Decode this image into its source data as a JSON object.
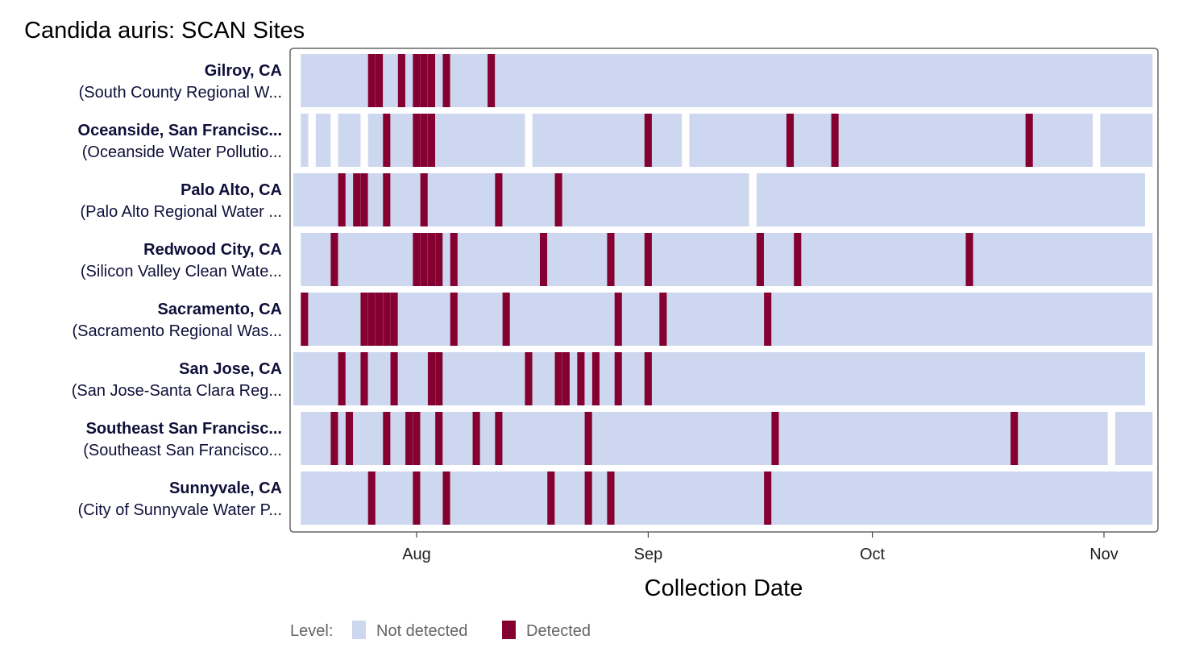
{
  "title": "Candida auris: SCAN Sites",
  "colors": {
    "not_detected": "#cdd7ef",
    "detected": "#850030",
    "frame": "#666666"
  },
  "chart_data": {
    "type": "heatmap",
    "title": "Candida auris: SCAN Sites",
    "xlabel": "Collection Date",
    "x_domain": [
      "2023-07-17",
      "2023-11-08"
    ],
    "x_ticks": [
      {
        "date": "2023-08-01",
        "label": "Aug"
      },
      {
        "date": "2023-09-01",
        "label": "Sep"
      },
      {
        "date": "2023-10-01",
        "label": "Oct"
      },
      {
        "date": "2023-11-01",
        "label": "Nov"
      }
    ],
    "legend": {
      "title": "Level:",
      "position": "bottom",
      "entries": [
        {
          "label": "Not detected",
          "color": "#cdd7ef"
        },
        {
          "label": "Detected",
          "color": "#850030"
        }
      ]
    },
    "sites": [
      {
        "name": "Gilroy, CA",
        "facility": "(South County Regional W...",
        "coverage": [
          [
            "2023-07-17",
            "2023-11-07"
          ]
        ],
        "detected": [
          "2023-07-26",
          "2023-07-27",
          "2023-07-30",
          "2023-08-01",
          "2023-08-02",
          "2023-08-03",
          "2023-08-05",
          "2023-08-11"
        ]
      },
      {
        "name": "Oceanside, San Francisc...",
        "facility": "(Oceanside Water Pollutio...",
        "coverage": [
          [
            "2023-07-17",
            "2023-07-17"
          ],
          [
            "2023-07-19",
            "2023-07-20"
          ],
          [
            "2023-07-22",
            "2023-07-24"
          ],
          [
            "2023-07-26",
            "2023-08-15"
          ],
          [
            "2023-08-17",
            "2023-09-05"
          ],
          [
            "2023-09-07",
            "2023-10-30"
          ],
          [
            "2023-11-01",
            "2023-11-07"
          ]
        ],
        "detected": [
          "2023-07-28",
          "2023-08-01",
          "2023-08-02",
          "2023-08-03",
          "2023-09-01",
          "2023-09-20",
          "2023-09-26",
          "2023-10-22"
        ]
      },
      {
        "name": "Palo Alto, CA",
        "facility": "(Palo Alto Regional Water ...",
        "coverage": [
          [
            "2023-07-16",
            "2023-09-14"
          ],
          [
            "2023-09-16",
            "2023-11-06"
          ]
        ],
        "detected": [
          "2023-07-22",
          "2023-07-24",
          "2023-07-25",
          "2023-07-28",
          "2023-08-02",
          "2023-08-12",
          "2023-08-20"
        ]
      },
      {
        "name": "Redwood City, CA",
        "facility": "(Silicon Valley Clean Wate...",
        "coverage": [
          [
            "2023-07-17",
            "2023-11-07"
          ]
        ],
        "detected": [
          "2023-07-21",
          "2023-08-01",
          "2023-08-02",
          "2023-08-03",
          "2023-08-04",
          "2023-08-06",
          "2023-08-18",
          "2023-08-27",
          "2023-09-01",
          "2023-09-16",
          "2023-09-21",
          "2023-10-14"
        ]
      },
      {
        "name": "Sacramento, CA",
        "facility": "(Sacramento Regional Was...",
        "coverage": [
          [
            "2023-07-17",
            "2023-11-07"
          ]
        ],
        "detected": [
          "2023-07-17",
          "2023-07-25",
          "2023-07-26",
          "2023-07-27",
          "2023-07-28",
          "2023-07-29",
          "2023-08-06",
          "2023-08-13",
          "2023-08-28",
          "2023-09-03",
          "2023-09-17"
        ]
      },
      {
        "name": "San Jose, CA",
        "facility": "(San Jose-Santa Clara Reg...",
        "coverage": [
          [
            "2023-07-16",
            "2023-11-06"
          ]
        ],
        "detected": [
          "2023-07-22",
          "2023-07-25",
          "2023-07-29",
          "2023-08-03",
          "2023-08-04",
          "2023-08-16",
          "2023-08-20",
          "2023-08-21",
          "2023-08-23",
          "2023-08-25",
          "2023-08-28",
          "2023-09-01"
        ]
      },
      {
        "name": "Southeast San Francisc...",
        "facility": "(Southeast San Francisco...",
        "coverage": [
          [
            "2023-07-17",
            "2023-11-01"
          ],
          [
            "2023-11-03",
            "2023-11-07"
          ]
        ],
        "detected": [
          "2023-07-21",
          "2023-07-23",
          "2023-07-28",
          "2023-07-31",
          "2023-08-01",
          "2023-08-04",
          "2023-08-09",
          "2023-08-12",
          "2023-08-24",
          "2023-09-18",
          "2023-10-20"
        ]
      },
      {
        "name": "Sunnyvale, CA",
        "facility": "(City of Sunnyvale Water P...",
        "coverage": [
          [
            "2023-07-17",
            "2023-11-07"
          ]
        ],
        "detected": [
          "2023-07-26",
          "2023-08-01",
          "2023-08-05",
          "2023-08-19",
          "2023-08-24",
          "2023-08-27",
          "2023-09-17"
        ]
      }
    ]
  }
}
